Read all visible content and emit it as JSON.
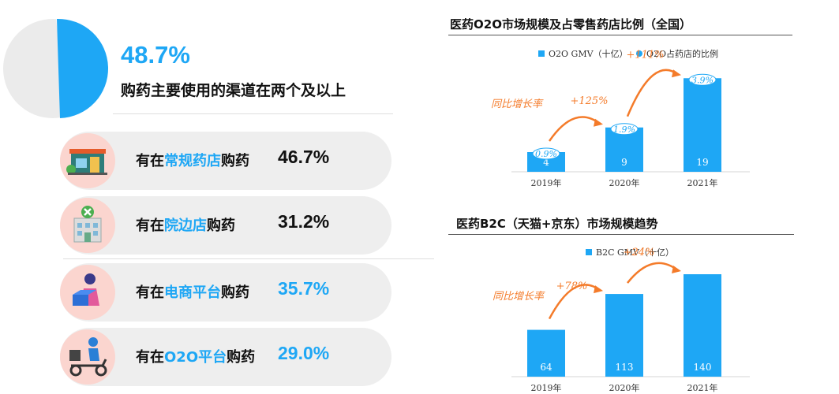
{
  "summary": {
    "percent": "48.7%",
    "caption": "购药主要使用的渠道在两个及以上"
  },
  "pie": {
    "value": 48.7,
    "color": "#1ea7f5",
    "rest_color": "#ebebeb"
  },
  "channels": [
    {
      "prefix": "有在",
      "highlight": "常规药店",
      "suffix": "购药",
      "value": "46.7%",
      "value_color": "#111111",
      "icon": "pharmacy-icon"
    },
    {
      "prefix": "有在",
      "highlight": "院边店",
      "suffix": "购药",
      "value": "31.2%",
      "value_color": "#111111",
      "icon": "hospital-icon"
    },
    {
      "prefix": "有在",
      "highlight": "电商平台",
      "suffix": "购药",
      "value": "35.7%",
      "value_color": "#1ea7f5",
      "icon": "delivery-person-icon"
    },
    {
      "prefix": "有在",
      "highlight": "O2O平台",
      "suffix": "购药",
      "value": "29.0%",
      "value_color": "#1ea7f5",
      "icon": "scooter-courier-icon"
    }
  ],
  "chart_data": [
    {
      "type": "bar",
      "title": "医药O2O市场规模及占零售药店比例（全国）",
      "categories": [
        "2019年",
        "2020年",
        "2021年"
      ],
      "series": [
        {
          "name": "O2O GMV（十亿）",
          "values": [
            4,
            9,
            19
          ],
          "color": "#1ea7f5"
        },
        {
          "name": "O2O占药店的比例",
          "values": [
            "0.9%",
            "1.9%",
            "3.9%"
          ],
          "color": "#1ea7f5"
        }
      ],
      "ylim": [
        0,
        20
      ],
      "legend": "top",
      "annotations": {
        "label": "同比增长率",
        "growth": [
          "+125%",
          "+111%"
        ],
        "color": "#f47b2a"
      }
    },
    {
      "type": "bar",
      "title": "医药B2C（天猫+京东）市场规模趋势",
      "categories": [
        "2019年",
        "2020年",
        "2021年"
      ],
      "series": [
        {
          "name": "B2C GMV（十亿）",
          "values": [
            64,
            113,
            140
          ],
          "color": "#1ea7f5"
        }
      ],
      "ylim": [
        0,
        140
      ],
      "legend": "top",
      "annotations": {
        "label": "同比增长率",
        "growth": [
          "+78%",
          "+24%"
        ],
        "color": "#f47b2a"
      }
    }
  ]
}
